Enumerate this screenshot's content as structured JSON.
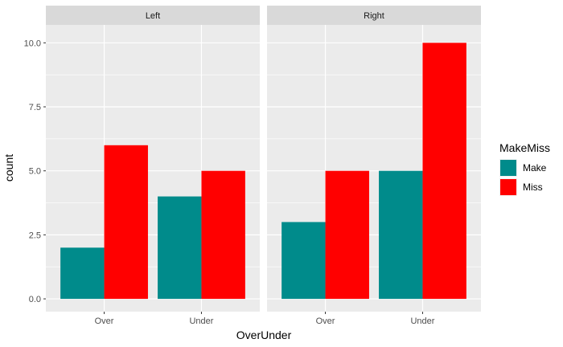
{
  "chart_data": {
    "type": "bar",
    "facet_var": "",
    "facets": [
      "Left",
      "Right"
    ],
    "categories": [
      "Over",
      "Under"
    ],
    "series": [
      {
        "name": "Make",
        "color": "#008B8B",
        "values": {
          "Left": [
            2,
            4
          ],
          "Right": [
            3,
            5
          ]
        }
      },
      {
        "name": "Miss",
        "color": "#FF0000",
        "values": {
          "Left": [
            6,
            5
          ],
          "Right": [
            5,
            10
          ]
        }
      }
    ],
    "xlabel": "OverUnder",
    "ylabel": "count",
    "ylim": [
      -0.5,
      10.7
    ],
    "y_ticks": [
      0.0,
      2.5,
      5.0,
      7.5,
      10.0
    ],
    "y_tick_labels": [
      "0.0",
      "2.5",
      "5.0",
      "7.5",
      "10.0"
    ],
    "legend_title": "MakeMiss",
    "legend_position": "right",
    "grid": true
  }
}
